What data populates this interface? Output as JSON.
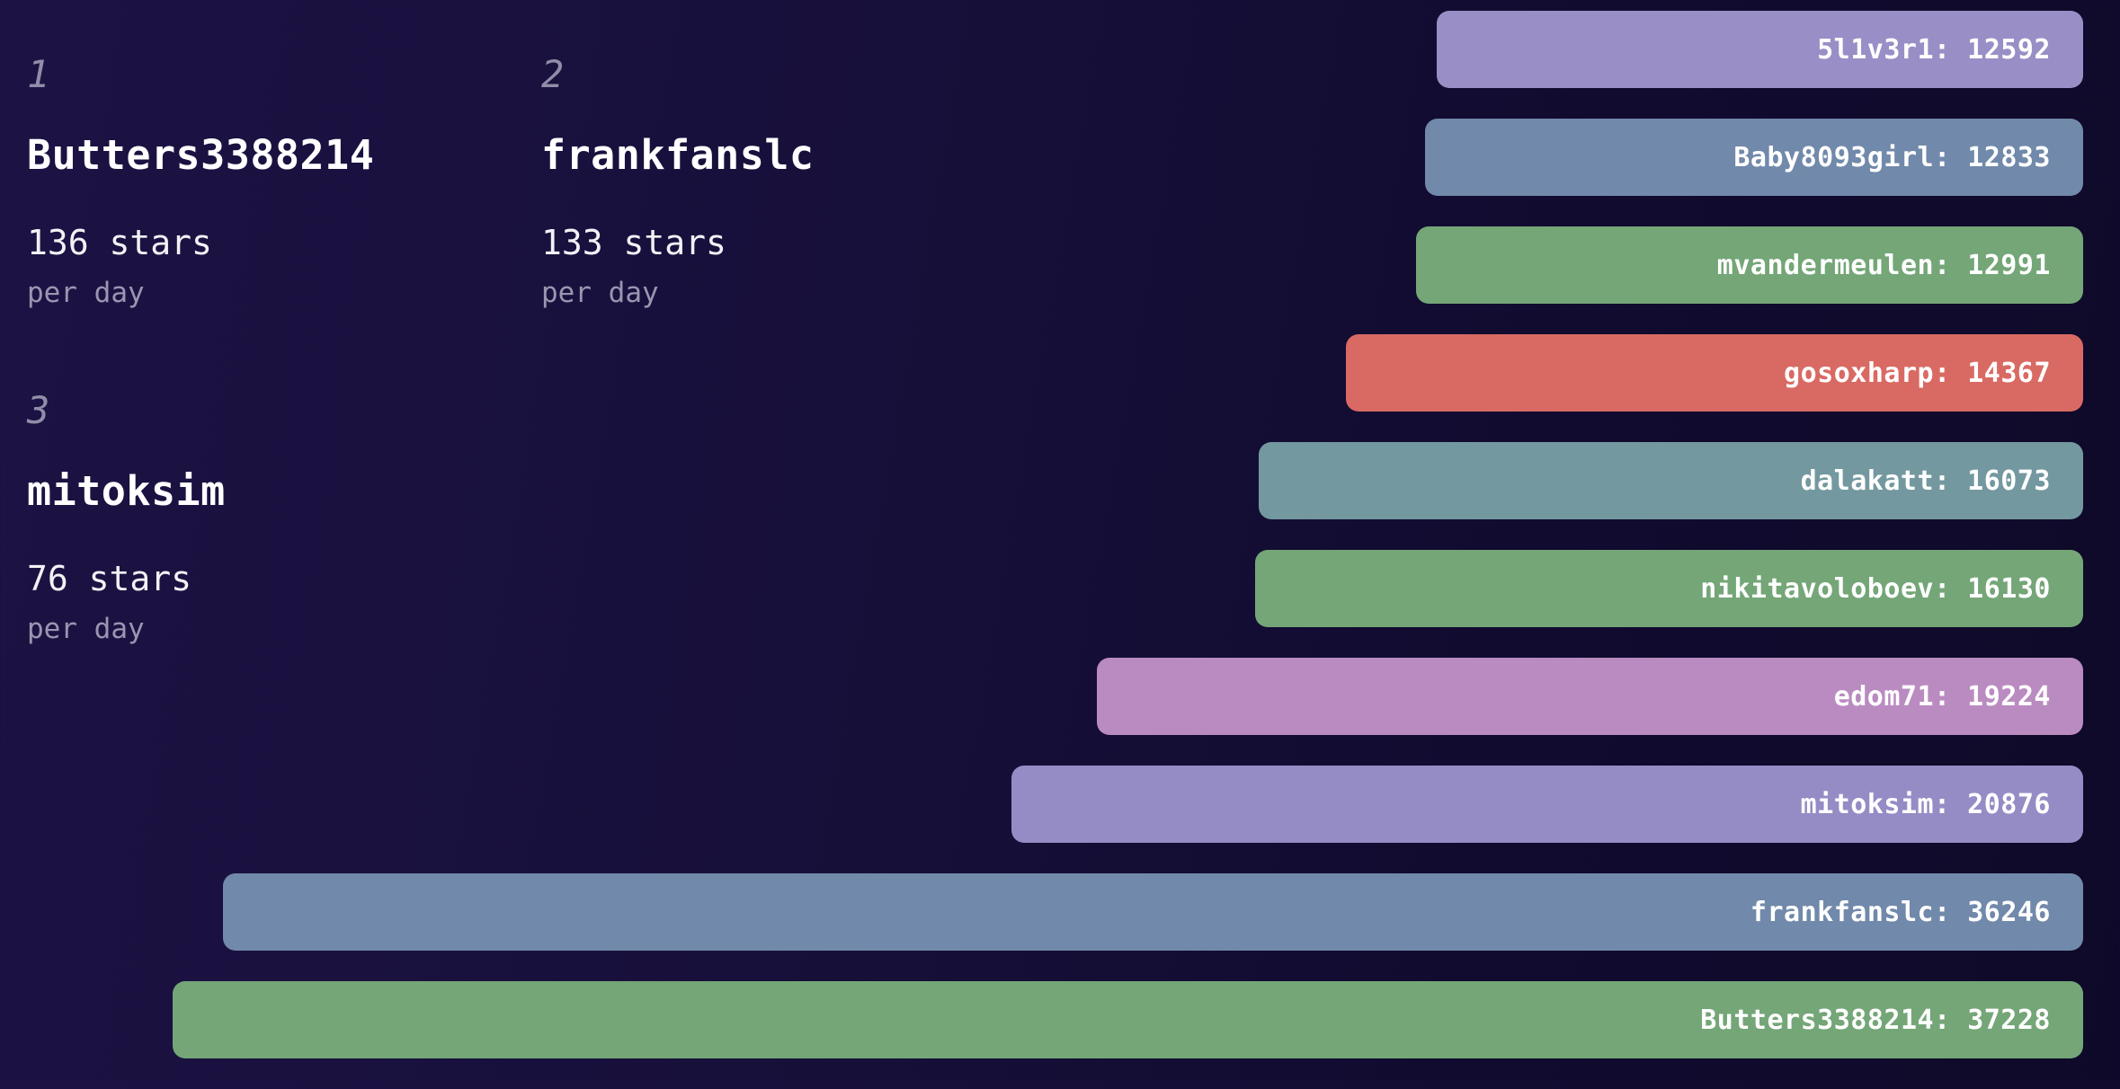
{
  "colors": {
    "background_left": "#1d1244",
    "background_right": "#0f0929",
    "bar_label_text": "#ffffff",
    "rank_number": "#908da9",
    "name_text": "#ffffff",
    "stars_text": "#f2f2f6",
    "per_day_text": "#9a96b1"
  },
  "rankings": {
    "items": [
      {
        "rank": "1",
        "name": "Butters3388214",
        "rate": "136 stars",
        "unit": "per day"
      },
      {
        "rank": "2",
        "name": "frankfanslc",
        "rate": "133 stars",
        "unit": "per day"
      },
      {
        "rank": "3",
        "name": "mitoksim",
        "rate": "76 stars",
        "unit": "per day"
      }
    ]
  },
  "chart_data": {
    "type": "bar",
    "orientation": "horizontal",
    "value_label_format": "{label}: {value}",
    "xlim": [
      0,
      37228
    ],
    "legend": "none",
    "grid": false,
    "bars": [
      {
        "label": "5l1v3r1",
        "value": 12592,
        "color": "#998fc6"
      },
      {
        "label": "Baby8093girl",
        "value": 12833,
        "color": "#7189aa"
      },
      {
        "label": "mvandermeulen",
        "value": 12991,
        "color": "#74a677"
      },
      {
        "label": "gosoxharp",
        "value": 14367,
        "color": "#d96a63"
      },
      {
        "label": "dalakatt",
        "value": 16073,
        "color": "#74989f"
      },
      {
        "label": "nikitavoloboev",
        "value": 16130,
        "color": "#74a677"
      },
      {
        "label": "edom71",
        "value": 19224,
        "color": "#ba8bc1"
      },
      {
        "label": "mitoksim",
        "value": 20876,
        "color": "#958cc6"
      },
      {
        "label": "frankfanslc",
        "value": 36246,
        "color": "#7189aa"
      },
      {
        "label": "Butters3388214",
        "value": 37228,
        "color": "#74a677"
      }
    ]
  }
}
